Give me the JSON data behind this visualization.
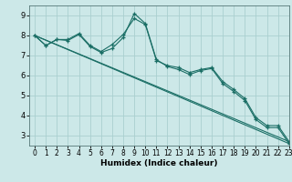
{
  "title": "",
  "xlabel": "Humidex (Indice chaleur)",
  "ylabel": "",
  "bg_color": "#cce8e8",
  "grid_color": "#aacfcf",
  "line_color": "#1a6e65",
  "marker": "+",
  "xlim": [
    -0.5,
    23
  ],
  "ylim": [
    2.5,
    9.5
  ],
  "yticks": [
    3,
    4,
    5,
    6,
    7,
    8,
    9
  ],
  "xticks": [
    0,
    1,
    2,
    3,
    4,
    5,
    6,
    7,
    8,
    9,
    10,
    11,
    12,
    13,
    14,
    15,
    16,
    17,
    18,
    19,
    20,
    21,
    22,
    23
  ],
  "line1_x": [
    0,
    1,
    2,
    3,
    4,
    5,
    6,
    7,
    8,
    9,
    10,
    11,
    12,
    13,
    14,
    15,
    16,
    17,
    18,
    19,
    20,
    21,
    22,
    23
  ],
  "line1_y": [
    8.0,
    7.5,
    7.8,
    7.8,
    8.1,
    7.5,
    7.2,
    7.55,
    8.05,
    8.85,
    8.55,
    6.75,
    6.5,
    6.4,
    6.15,
    6.3,
    6.4,
    5.7,
    5.3,
    4.85,
    3.9,
    3.5,
    3.5,
    2.7
  ],
  "line2_x": [
    0,
    1,
    2,
    3,
    4,
    5,
    6,
    7,
    8,
    9,
    10,
    11,
    12,
    13,
    14,
    15,
    16,
    17,
    18,
    19,
    20,
    21,
    22,
    23
  ],
  "line2_y": [
    8.0,
    7.5,
    7.8,
    7.75,
    8.05,
    7.45,
    7.15,
    7.35,
    7.9,
    9.1,
    8.6,
    6.8,
    6.45,
    6.3,
    6.05,
    6.25,
    6.35,
    5.6,
    5.2,
    4.75,
    3.8,
    3.4,
    3.4,
    2.6
  ],
  "line3_x": [
    0,
    23
  ],
  "line3_y": [
    8.0,
    2.7
  ],
  "line4_x": [
    0,
    23
  ],
  "line4_y": [
    8.0,
    2.6
  ]
}
